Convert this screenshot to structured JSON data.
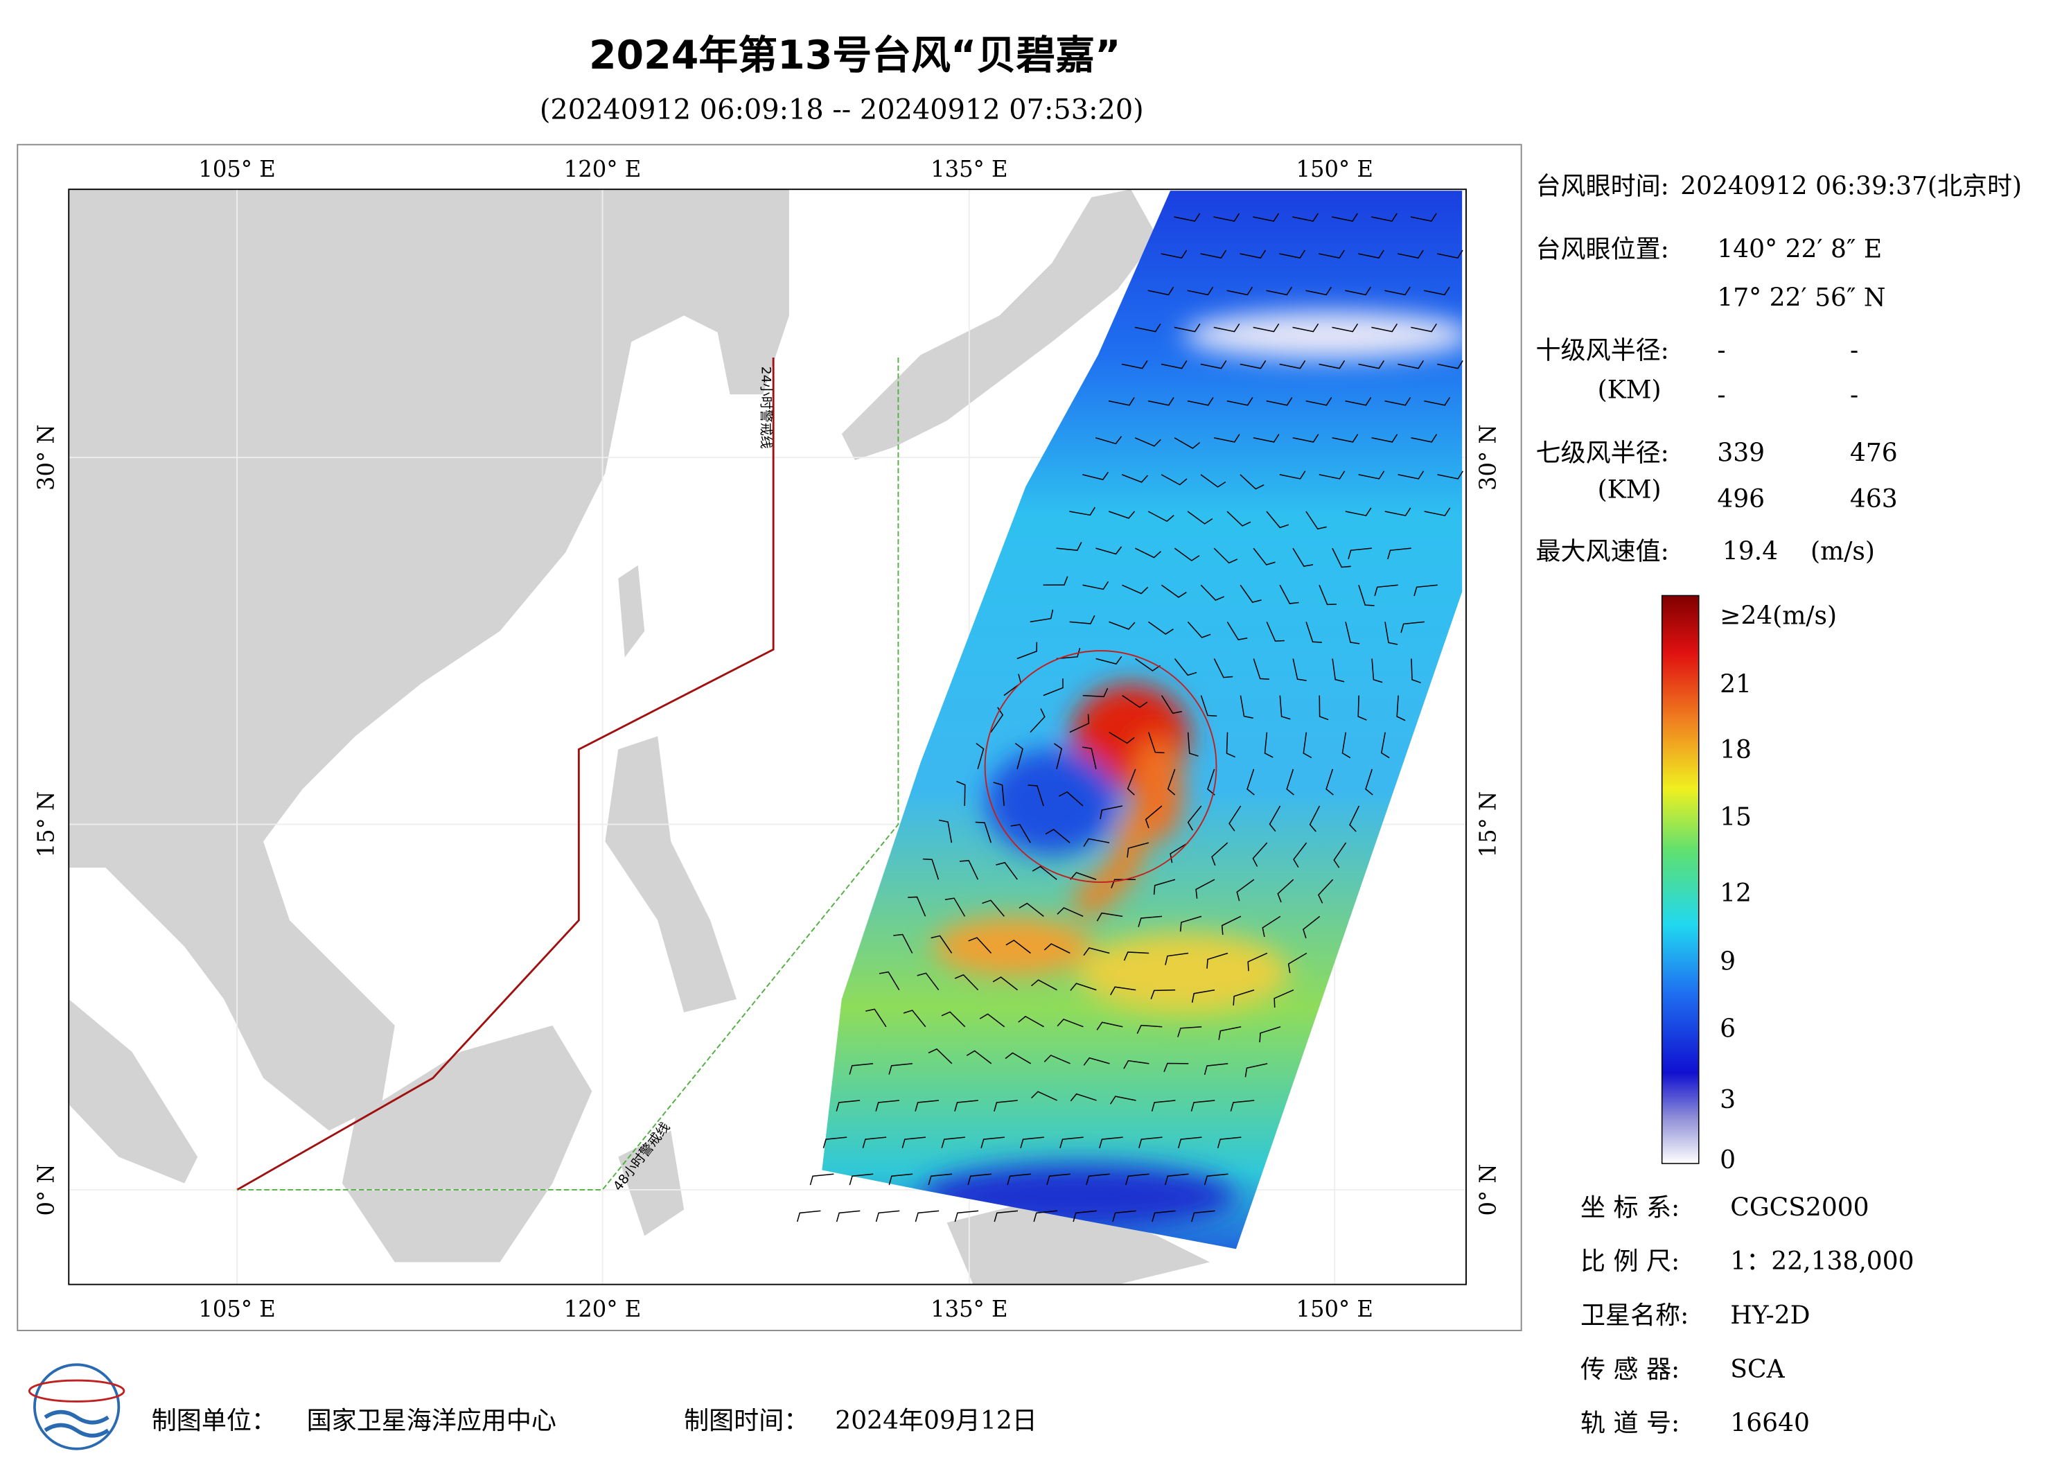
{
  "header": {
    "title": "2024年第13号台风“贝碧嘉”",
    "subtitle": "(20240912 06:09:18 -- 20240912 07:53:20)"
  },
  "map": {
    "lon_labels": [
      "105° E",
      "120° E",
      "135° E",
      "150° E"
    ],
    "lat_labels": [
      "30° N",
      "15° N",
      "0° N"
    ],
    "warning_24h": "24小时警戒线",
    "warning_48h": "48小时警戒线"
  },
  "info": {
    "eye_time_label": "台风眼时间:",
    "eye_time": "20240912 06:39:37(北京时)",
    "eye_pos_label": "台风眼位置:",
    "eye_lon": "140° 22′ 8″ E",
    "eye_lat": "17° 22′ 56″ N",
    "r10_label": "十级风半径:",
    "unit_km": "(KM)",
    "r10": [
      "-",
      "-",
      "-",
      "-"
    ],
    "r7_label": "七级风半径:",
    "r7": [
      339,
      476,
      496,
      463
    ],
    "max_label": "最大风速值:",
    "max_value": 19.4,
    "max_unit": "(m/s)"
  },
  "colorbar": {
    "labels": [
      "≥24(m/s)",
      21,
      18,
      15,
      12,
      9,
      6,
      3,
      0
    ]
  },
  "meta": {
    "rows": [
      {
        "label": "坐 标 系:",
        "value": "CGCS2000"
      },
      {
        "label": "比 例 尺:",
        "value": "1：22,138,000"
      },
      {
        "label": "卫星名称:",
        "value": "HY-2D"
      },
      {
        "label": "传 感 器:",
        "value": "SCA"
      },
      {
        "label": "轨 道 号:",
        "value": 16640
      }
    ]
  },
  "footer": {
    "unit_label": "制图单位：",
    "unit": "国家卫星海洋应用中心",
    "time_label": "制图时间：",
    "time": "2024年09月12日"
  }
}
